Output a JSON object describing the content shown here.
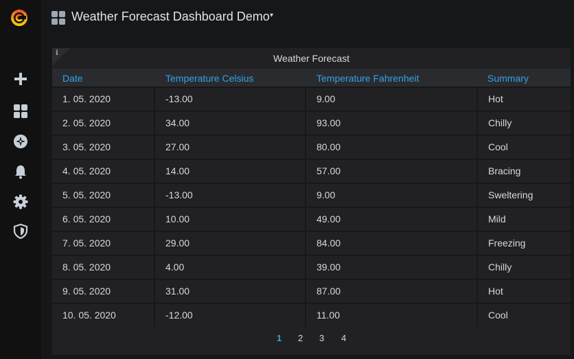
{
  "header": {
    "title": "Weather Forecast Dashboard Demo",
    "caret": "▾"
  },
  "sidebar": {
    "items": [
      {
        "name": "create"
      },
      {
        "name": "dashboards"
      },
      {
        "name": "explore"
      },
      {
        "name": "alerting"
      },
      {
        "name": "configuration"
      },
      {
        "name": "server-admin"
      }
    ]
  },
  "panel": {
    "title": "Weather Forecast",
    "info_glyph": "i",
    "columns": [
      "Date",
      "Temperature Celsius",
      "Temperature Fahrenheit",
      "Summary"
    ],
    "rows": [
      [
        "1. 05. 2020",
        "-13.00",
        "9.00",
        "Hot"
      ],
      [
        "2. 05. 2020",
        "34.00",
        "93.00",
        "Chilly"
      ],
      [
        "3. 05. 2020",
        "27.00",
        "80.00",
        "Cool"
      ],
      [
        "4. 05. 2020",
        "14.00",
        "57.00",
        "Bracing"
      ],
      [
        "5. 05. 2020",
        "-13.00",
        "9.00",
        "Sweltering"
      ],
      [
        "6. 05. 2020",
        "10.00",
        "49.00",
        "Mild"
      ],
      [
        "7. 05. 2020",
        "29.00",
        "84.00",
        "Freezing"
      ],
      [
        "8. 05. 2020",
        "4.00",
        "39.00",
        "Chilly"
      ],
      [
        "9. 05. 2020",
        "31.00",
        "87.00",
        "Hot"
      ],
      [
        "10. 05. 2020",
        "-12.00",
        "11.00",
        "Cool"
      ]
    ],
    "pages": [
      "1",
      "2",
      "3",
      "4"
    ],
    "active_page": "1"
  },
  "colors": {
    "accent": "#33a2e5",
    "background": "#161719",
    "panel": "#212124"
  }
}
